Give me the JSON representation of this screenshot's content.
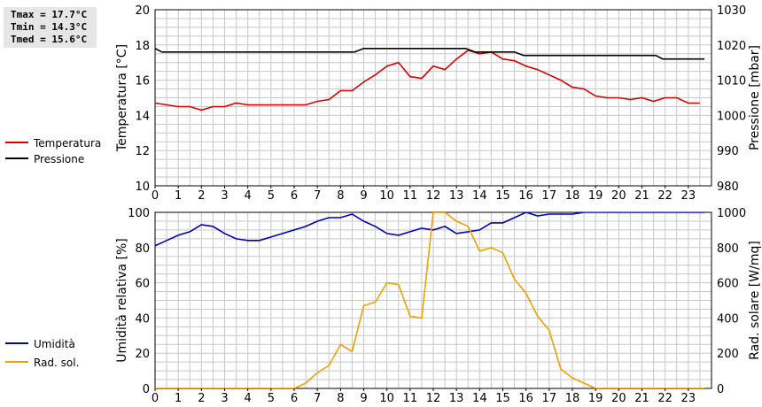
{
  "stats": {
    "tmax": "Tmax = 17.7°C",
    "tmin": "Tmin = 14.3°C",
    "tmed": "Tmed = 15.6°C"
  },
  "colors": {
    "temperature": "#dd0000",
    "pressure": "#000000",
    "humidity": "#0000bb",
    "solar": "#f0a000",
    "grid": "#c8c8c8"
  },
  "chart_data": [
    {
      "type": "line",
      "xlabel": "",
      "x_ticks": [
        "0",
        "1",
        "2",
        "3",
        "4",
        "5",
        "6",
        "7",
        "8",
        "9",
        "10",
        "11",
        "12",
        "13",
        "14",
        "15",
        "16",
        "17",
        "18",
        "19",
        "20",
        "21",
        "22",
        "23"
      ],
      "xlim": [
        0,
        24
      ],
      "ylabel_left": "Temperatura [°C]",
      "ylim_left": [
        10,
        20
      ],
      "yticks_left": [
        "10",
        "12",
        "14",
        "16",
        "18",
        "20"
      ],
      "ylabel_right": "Pressione [mbar]",
      "ylim_right": [
        980,
        1030
      ],
      "yticks_right": [
        "980",
        "990",
        "1000",
        "1010",
        "1020",
        "1030"
      ],
      "grid": true,
      "series": [
        {
          "name": "Temperatura",
          "axis": "left",
          "x": [
            0,
            0.5,
            1,
            1.5,
            2,
            2.5,
            3,
            3.5,
            4,
            4.5,
            5,
            5.5,
            6,
            6.5,
            7,
            7.5,
            8,
            8.5,
            9,
            9.5,
            10,
            10.5,
            11,
            11.5,
            12,
            12.5,
            13,
            13.5,
            14,
            14.5,
            15,
            15.5,
            16,
            16.5,
            17,
            17.5,
            18,
            18.5,
            19,
            19.5,
            20,
            20.5,
            21,
            21.5,
            22,
            22.5,
            23,
            23.5
          ],
          "values": [
            14.7,
            14.6,
            14.5,
            14.5,
            14.3,
            14.5,
            14.5,
            14.7,
            14.6,
            14.6,
            14.6,
            14.6,
            14.6,
            14.6,
            14.8,
            14.9,
            15.4,
            15.4,
            15.9,
            16.3,
            16.8,
            17.0,
            16.2,
            16.1,
            16.8,
            16.6,
            17.2,
            17.7,
            17.5,
            17.6,
            17.2,
            17.1,
            16.8,
            16.6,
            16.3,
            16.0,
            15.6,
            15.5,
            15.1,
            15.0,
            15.0,
            14.9,
            15.0,
            14.8,
            15.0,
            15.0,
            14.7,
            14.7
          ]
        },
        {
          "name": "Pressione",
          "axis": "right",
          "x": [
            0,
            0.3,
            8.6,
            9.0,
            13.4,
            13.8,
            15.5,
            15.9,
            21.6,
            21.9,
            23.7
          ],
          "values": [
            1019,
            1018,
            1018,
            1019,
            1019,
            1018,
            1018,
            1017,
            1017,
            1016,
            1016
          ]
        }
      ]
    },
    {
      "type": "line",
      "xlabel": "",
      "x_ticks": [
        "0",
        "1",
        "2",
        "3",
        "4",
        "5",
        "6",
        "7",
        "8",
        "9",
        "10",
        "11",
        "12",
        "13",
        "14",
        "15",
        "16",
        "17",
        "18",
        "19",
        "20",
        "21",
        "22",
        "23"
      ],
      "xlim": [
        0,
        24
      ],
      "ylabel_left": "Umidità relativa [%]",
      "ylim_left": [
        0,
        100
      ],
      "yticks_left": [
        "0",
        "20",
        "40",
        "60",
        "80",
        "100"
      ],
      "ylabel_right": "Rad. solare [W/mq]",
      "ylim_right": [
        0,
        1000
      ],
      "yticks_right": [
        "0",
        "200",
        "400",
        "600",
        "800",
        "1000"
      ],
      "grid": true,
      "series": [
        {
          "name": "Umidità",
          "axis": "left",
          "x": [
            0,
            0.5,
            1,
            1.5,
            2,
            2.5,
            3,
            3.5,
            4,
            4.5,
            5,
            5.5,
            6,
            6.5,
            7,
            7.5,
            8,
            8.5,
            9,
            9.5,
            10,
            10.5,
            11,
            11.5,
            12,
            12.5,
            13,
            13.5,
            14,
            14.5,
            15,
            15.5,
            16,
            16.5,
            17,
            17.5,
            18,
            18.5,
            23.7
          ],
          "values": [
            81,
            84,
            87,
            89,
            93,
            92,
            88,
            85,
            84,
            84,
            86,
            88,
            90,
            92,
            95,
            97,
            97,
            99,
            95,
            92,
            88,
            87,
            89,
            91,
            90,
            92,
            88,
            89,
            90,
            94,
            94,
            97,
            100,
            98,
            99,
            99,
            99,
            100,
            100
          ]
        },
        {
          "name": "Rad. sol.",
          "axis": "right",
          "x": [
            0,
            6.0,
            6.5,
            7.0,
            7.5,
            8.0,
            8.5,
            9.0,
            9.5,
            10.0,
            10.5,
            11.0,
            11.5,
            12.0,
            12.5,
            13.0,
            13.5,
            14.0,
            14.5,
            15.0,
            15.5,
            16.0,
            16.5,
            17.0,
            17.5,
            18.0,
            18.5,
            19.0,
            23.7
          ],
          "values": [
            0,
            0,
            30,
            90,
            130,
            250,
            210,
            470,
            490,
            600,
            590,
            410,
            400,
            1000,
            1000,
            950,
            920,
            780,
            800,
            770,
            620,
            540,
            410,
            330,
            110,
            60,
            30,
            0,
            0
          ]
        }
      ]
    }
  ],
  "legend": {
    "temperature": "Temperatura",
    "pressure": "Pressione",
    "humidity": "Umidità",
    "solar": "Rad. sol."
  }
}
